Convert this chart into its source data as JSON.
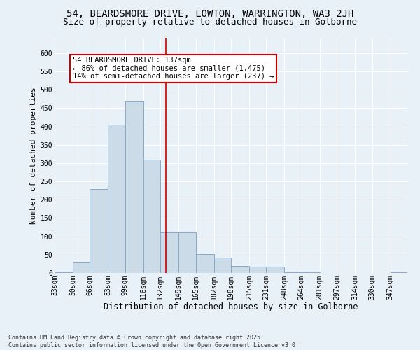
{
  "title_line1": "54, BEARDSMORE DRIVE, LOWTON, WARRINGTON, WA3 2JH",
  "title_line2": "Size of property relative to detached houses in Golborne",
  "xlabel": "Distribution of detached houses by size in Golborne",
  "ylabel": "Number of detached properties",
  "footnote": "Contains HM Land Registry data © Crown copyright and database right 2025.\nContains public sector information licensed under the Open Government Licence v3.0.",
  "bins": [
    33,
    50,
    66,
    83,
    99,
    116,
    132,
    149,
    165,
    182,
    198,
    215,
    231,
    248,
    264,
    281,
    297,
    314,
    330,
    347,
    363
  ],
  "bar_heights": [
    2,
    28,
    230,
    405,
    470,
    310,
    110,
    110,
    52,
    42,
    20,
    18,
    18,
    2,
    2,
    0,
    0,
    0,
    0,
    2
  ],
  "bar_color": "#ccdbe8",
  "bar_edge_color": "#88aac8",
  "property_line_x": 137,
  "property_line_color": "#cc0000",
  "annotation_text": "54 BEARDSMORE DRIVE: 137sqm\n← 86% of detached houses are smaller (1,475)\n14% of semi-detached houses are larger (237) →",
  "annotation_box_color": "#ffffff",
  "annotation_box_edge_color": "#cc0000",
  "ylim": [
    0,
    640
  ],
  "yticks": [
    0,
    50,
    100,
    150,
    200,
    250,
    300,
    350,
    400,
    450,
    500,
    550,
    600
  ],
  "bg_color": "#e8f0f8",
  "grid_color": "#ffffff",
  "title_fontsize": 10,
  "subtitle_fontsize": 9,
  "tick_fontsize": 7,
  "xlabel_fontsize": 8.5,
  "ylabel_fontsize": 8,
  "annot_fontsize": 7.5,
  "footnote_fontsize": 6
}
